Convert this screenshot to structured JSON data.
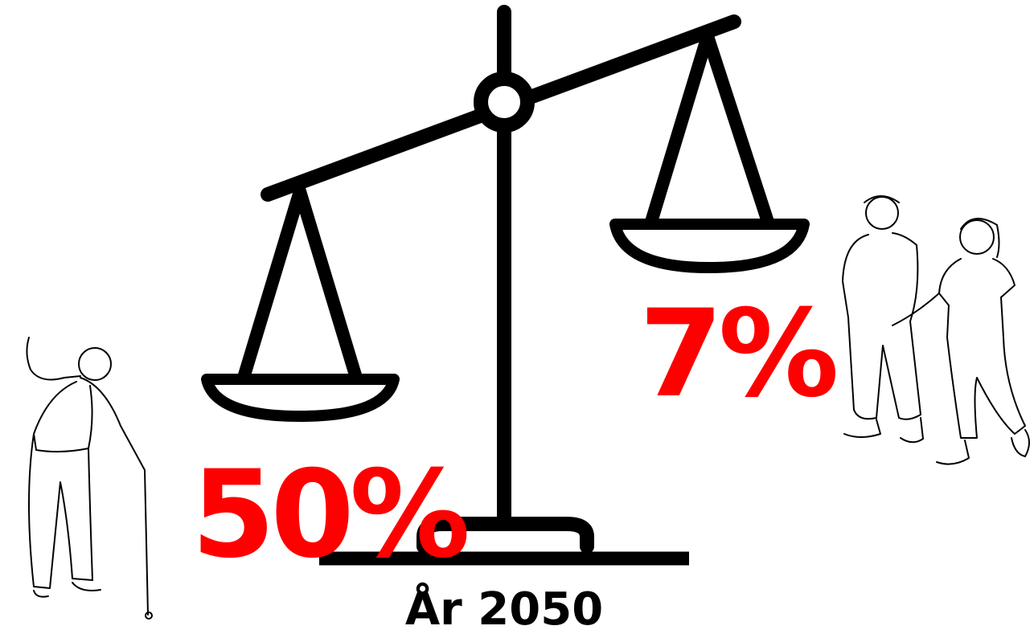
{
  "labels": {
    "left": "50%",
    "right": "7%"
  },
  "caption": "År 2050"
}
